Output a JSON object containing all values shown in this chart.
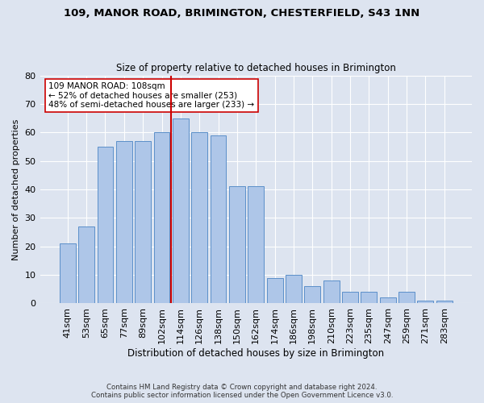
{
  "title1": "109, MANOR ROAD, BRIMINGTON, CHESTERFIELD, S43 1NN",
  "title2": "Size of property relative to detached houses in Brimington",
  "xlabel": "Distribution of detached houses by size in Brimington",
  "ylabel": "Number of detached properties",
  "categories": [
    "41sqm",
    "53sqm",
    "65sqm",
    "77sqm",
    "89sqm",
    "102sqm",
    "114sqm",
    "126sqm",
    "138sqm",
    "150sqm",
    "162sqm",
    "174sqm",
    "186sqm",
    "198sqm",
    "210sqm",
    "223sqm",
    "235sqm",
    "247sqm",
    "259sqm",
    "271sqm",
    "283sqm"
  ],
  "values": [
    21,
    27,
    55,
    57,
    57,
    60,
    65,
    60,
    59,
    41,
    41,
    9,
    10,
    6,
    8,
    4,
    4,
    2,
    4,
    1,
    1
  ],
  "bar_color": "#aec6e8",
  "bar_edge_color": "#5b8fc9",
  "vline_x": 6.0,
  "vline_color": "#cc0000",
  "annotation_text": "109 MANOR ROAD: 108sqm\n← 52% of detached houses are smaller (253)\n48% of semi-detached houses are larger (233) →",
  "annotation_box_color": "#ffffff",
  "annotation_box_edge": "#cc0000",
  "ylim": [
    0,
    80
  ],
  "yticks": [
    0,
    10,
    20,
    30,
    40,
    50,
    60,
    70,
    80
  ],
  "footer1": "Contains HM Land Registry data © Crown copyright and database right 2024.",
  "footer2": "Contains public sector information licensed under the Open Government Licence v3.0.",
  "bg_color": "#dde4f0",
  "plot_bg_color": "#dde4f0"
}
